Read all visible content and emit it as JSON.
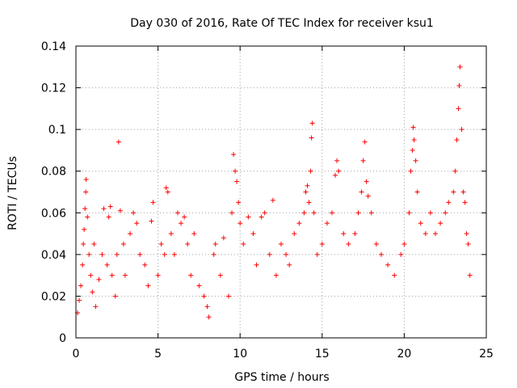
{
  "chart_data": {
    "type": "scatter",
    "title": "Day 030 of 2016, Rate Of TEC Index for receiver ksu1",
    "xlabel": "GPS time / hours",
    "ylabel": "ROTI / TECUs",
    "xlim": [
      0,
      25
    ],
    "ylim": [
      0,
      0.14
    ],
    "x_ticks": [
      0,
      5,
      10,
      15,
      20,
      25
    ],
    "x_tick_labels": [
      "0",
      "5",
      "10",
      "15",
      "20",
      "25"
    ],
    "y_ticks": [
      0,
      0.02,
      0.04,
      0.06,
      0.08,
      0.1,
      0.12,
      0.14
    ],
    "y_tick_labels": [
      "0",
      "0.02",
      "0.04",
      "0.06",
      "0.08",
      "0.1",
      "0.12",
      "0.14"
    ],
    "grid": true,
    "marker": "+",
    "color": "#ff0000",
    "series": [
      {
        "name": "ROTI",
        "points": [
          [
            0.1,
            0.012
          ],
          [
            0.2,
            0.018
          ],
          [
            0.3,
            0.025
          ],
          [
            0.4,
            0.035
          ],
          [
            0.45,
            0.045
          ],
          [
            0.5,
            0.052
          ],
          [
            0.55,
            0.062
          ],
          [
            0.6,
            0.07
          ],
          [
            0.62,
            0.076
          ],
          [
            0.7,
            0.058
          ],
          [
            0.8,
            0.04
          ],
          [
            0.9,
            0.03
          ],
          [
            1.0,
            0.022
          ],
          [
            1.1,
            0.045
          ],
          [
            1.2,
            0.015
          ],
          [
            1.4,
            0.028
          ],
          [
            1.6,
            0.04
          ],
          [
            1.7,
            0.062
          ],
          [
            1.9,
            0.035
          ],
          [
            2.0,
            0.058
          ],
          [
            2.1,
            0.063
          ],
          [
            2.2,
            0.03
          ],
          [
            2.4,
            0.02
          ],
          [
            2.5,
            0.04
          ],
          [
            2.6,
            0.094
          ],
          [
            2.7,
            0.061
          ],
          [
            2.9,
            0.045
          ],
          [
            3.0,
            0.03
          ],
          [
            3.3,
            0.05
          ],
          [
            3.5,
            0.06
          ],
          [
            3.7,
            0.055
          ],
          [
            3.9,
            0.04
          ],
          [
            4.2,
            0.035
          ],
          [
            4.4,
            0.025
          ],
          [
            4.6,
            0.056
          ],
          [
            4.7,
            0.065
          ],
          [
            5.0,
            0.03
          ],
          [
            5.2,
            0.045
          ],
          [
            5.4,
            0.04
          ],
          [
            5.5,
            0.072
          ],
          [
            5.6,
            0.07
          ],
          [
            5.8,
            0.05
          ],
          [
            6.0,
            0.04
          ],
          [
            6.2,
            0.06
          ],
          [
            6.4,
            0.055
          ],
          [
            6.6,
            0.058
          ],
          [
            6.8,
            0.045
          ],
          [
            7.0,
            0.03
          ],
          [
            7.2,
            0.05
          ],
          [
            7.5,
            0.025
          ],
          [
            7.8,
            0.02
          ],
          [
            8.0,
            0.015
          ],
          [
            8.1,
            0.01
          ],
          [
            8.4,
            0.04
          ],
          [
            8.5,
            0.045
          ],
          [
            8.8,
            0.03
          ],
          [
            9.0,
            0.048
          ],
          [
            9.3,
            0.02
          ],
          [
            9.5,
            0.06
          ],
          [
            9.6,
            0.088
          ],
          [
            9.7,
            0.08
          ],
          [
            9.8,
            0.075
          ],
          [
            9.9,
            0.065
          ],
          [
            10.0,
            0.055
          ],
          [
            10.2,
            0.045
          ],
          [
            10.5,
            0.058
          ],
          [
            10.8,
            0.05
          ],
          [
            11.0,
            0.035
          ],
          [
            11.3,
            0.058
          ],
          [
            11.5,
            0.06
          ],
          [
            11.8,
            0.04
          ],
          [
            12.0,
            0.066
          ],
          [
            12.2,
            0.03
          ],
          [
            12.5,
            0.045
          ],
          [
            12.8,
            0.04
          ],
          [
            13.0,
            0.035
          ],
          [
            13.3,
            0.05
          ],
          [
            13.6,
            0.055
          ],
          [
            13.9,
            0.06
          ],
          [
            14.0,
            0.07
          ],
          [
            14.1,
            0.073
          ],
          [
            14.2,
            0.065
          ],
          [
            14.3,
            0.08
          ],
          [
            14.35,
            0.096
          ],
          [
            14.4,
            0.103
          ],
          [
            14.5,
            0.06
          ],
          [
            14.7,
            0.04
          ],
          [
            15.0,
            0.045
          ],
          [
            15.3,
            0.055
          ],
          [
            15.6,
            0.06
          ],
          [
            15.8,
            0.078
          ],
          [
            15.9,
            0.085
          ],
          [
            16.0,
            0.08
          ],
          [
            16.3,
            0.05
          ],
          [
            16.6,
            0.045
          ],
          [
            17.0,
            0.05
          ],
          [
            17.2,
            0.06
          ],
          [
            17.4,
            0.07
          ],
          [
            17.5,
            0.085
          ],
          [
            17.6,
            0.094
          ],
          [
            17.7,
            0.075
          ],
          [
            17.8,
            0.068
          ],
          [
            18.0,
            0.06
          ],
          [
            18.3,
            0.045
          ],
          [
            18.6,
            0.04
          ],
          [
            19.0,
            0.035
          ],
          [
            19.4,
            0.03
          ],
          [
            19.8,
            0.04
          ],
          [
            20.0,
            0.045
          ],
          [
            20.3,
            0.06
          ],
          [
            20.4,
            0.08
          ],
          [
            20.5,
            0.09
          ],
          [
            20.55,
            0.101
          ],
          [
            20.6,
            0.095
          ],
          [
            20.7,
            0.085
          ],
          [
            20.8,
            0.07
          ],
          [
            21.0,
            0.055
          ],
          [
            21.3,
            0.05
          ],
          [
            21.6,
            0.06
          ],
          [
            21.9,
            0.05
          ],
          [
            22.2,
            0.055
          ],
          [
            22.5,
            0.06
          ],
          [
            22.7,
            0.065
          ],
          [
            23.0,
            0.07
          ],
          [
            23.1,
            0.08
          ],
          [
            23.2,
            0.095
          ],
          [
            23.3,
            0.11
          ],
          [
            23.35,
            0.121
          ],
          [
            23.4,
            0.13
          ],
          [
            23.5,
            0.1
          ],
          [
            23.6,
            0.07
          ],
          [
            23.7,
            0.065
          ],
          [
            23.8,
            0.05
          ],
          [
            23.9,
            0.045
          ],
          [
            24.0,
            0.03
          ]
        ]
      }
    ]
  }
}
